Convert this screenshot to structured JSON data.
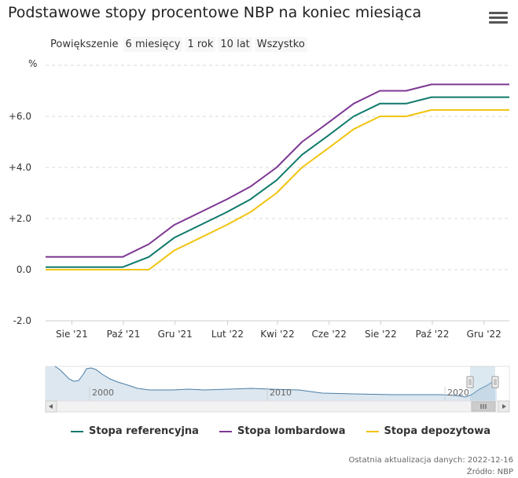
{
  "title": "Podstawowe stopy procentowe NBP na koniec miesiąca",
  "menu_icon": "hamburger-menu-icon",
  "zoom": {
    "label": "Powiększenie",
    "buttons": [
      "6 miesięcy",
      "1 rok",
      "10 lat",
      "Wszystko"
    ]
  },
  "chart_data": {
    "type": "line",
    "y_unit": "%",
    "ylim": [
      -2.0,
      8.0
    ],
    "y_ticks": [
      -2.0,
      0.0,
      2.0,
      4.0,
      6.0
    ],
    "y_tick_labels": [
      "-2.0",
      "0.0",
      "+2.0",
      "+4.0",
      "+6.0"
    ],
    "x_range": [
      "2021-07-01",
      "2022-12-31"
    ],
    "x_ticks": [
      "2021-08-01",
      "2021-10-01",
      "2021-12-01",
      "2022-02-01",
      "2022-04-01",
      "2022-06-01",
      "2022-08-01",
      "2022-10-01",
      "2022-12-01"
    ],
    "x_tick_labels": [
      "Sie '21",
      "Paź '21",
      "Gru '21",
      "Lut '22",
      "Kwi '22",
      "Cze '22",
      "Sie '22",
      "Paź '22",
      "Gru '22"
    ],
    "x": [
      "2021-07-31",
      "2021-08-31",
      "2021-09-30",
      "2021-10-31",
      "2021-11-30",
      "2021-12-31",
      "2022-01-31",
      "2022-02-28",
      "2022-03-31",
      "2022-04-30",
      "2022-05-31",
      "2022-06-30",
      "2022-07-31",
      "2022-08-31",
      "2022-09-30",
      "2022-10-31",
      "2022-11-30",
      "2022-12-31"
    ],
    "series": [
      {
        "name": "Stopa referencyjna",
        "color": "#0f7a6b",
        "values": [
          0.1,
          0.1,
          0.1,
          0.5,
          1.25,
          1.75,
          2.25,
          2.75,
          3.5,
          4.5,
          5.25,
          6.0,
          6.5,
          6.5,
          6.75,
          6.75,
          6.75,
          6.75
        ]
      },
      {
        "name": "Stopa lombardowa",
        "color": "#7e3794",
        "values": [
          0.5,
          0.5,
          0.5,
          1.0,
          1.75,
          2.25,
          2.75,
          3.25,
          4.0,
          5.0,
          5.75,
          6.5,
          7.0,
          7.0,
          7.25,
          7.25,
          7.25,
          7.25
        ]
      },
      {
        "name": "Stopa depozytowa",
        "color": "#f1c40f",
        "values": [
          0.0,
          0.0,
          0.0,
          0.0,
          0.75,
          1.25,
          1.75,
          2.25,
          3.0,
          4.0,
          4.75,
          5.5,
          6.0,
          6.0,
          6.25,
          6.25,
          6.25,
          6.25
        ]
      }
    ],
    "grid": true,
    "legend_position": "bottom",
    "navigator": {
      "tick_labels": [
        "2000",
        "2010",
        "2020"
      ]
    }
  },
  "footer": {
    "updated": "Ostatnia aktualizacja danych: 2022-12-16",
    "source": "Źródło: NBP"
  }
}
